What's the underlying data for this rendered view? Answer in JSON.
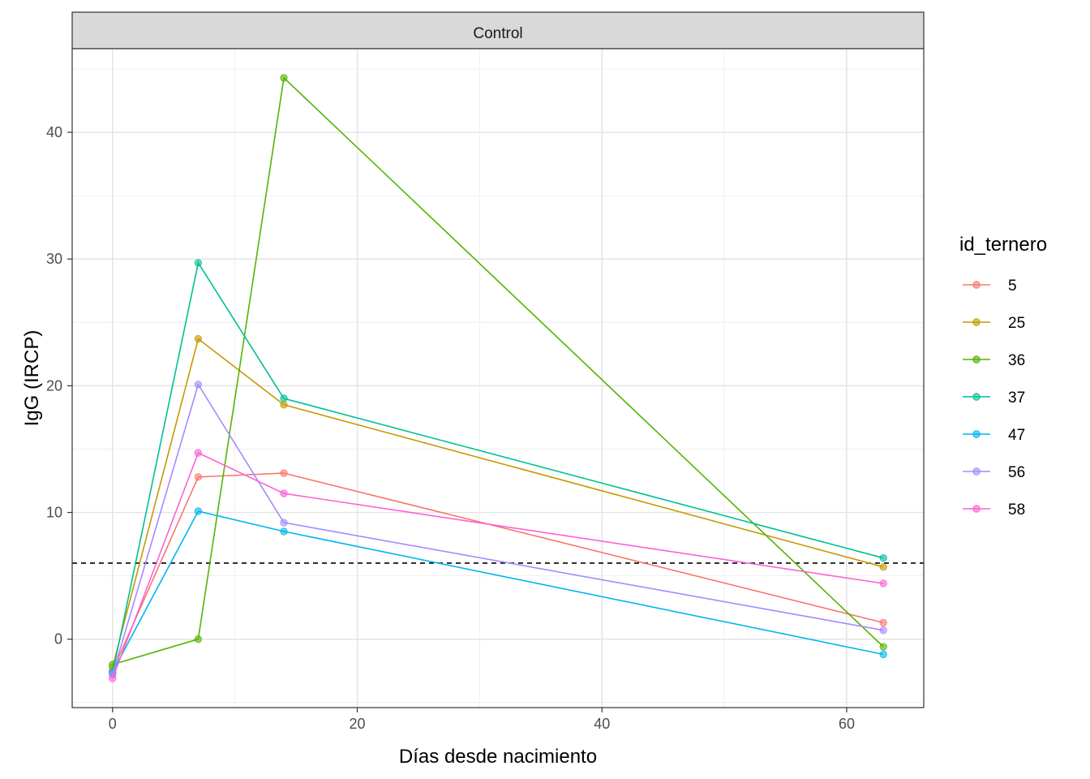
{
  "chart_data": {
    "type": "line",
    "facet": "Control",
    "xlabel": "Días desde nacimiento",
    "ylabel": "IgG (IRCP)",
    "xlim": [
      -3.3,
      66.3
    ],
    "ylim": [
      -5.4,
      46.6
    ],
    "x_ticks": [
      0,
      20,
      40,
      60
    ],
    "y_ticks": [
      0,
      10,
      20,
      30,
      40
    ],
    "grid": true,
    "reference_line": {
      "y": 6,
      "style": "dashed"
    },
    "legend": {
      "title": "id_ternero",
      "position": "right"
    },
    "series": [
      {
        "name": "5",
        "color": "#F8766D",
        "points": [
          [
            0,
            -2.5
          ],
          [
            7,
            12.8
          ],
          [
            14,
            13.1
          ],
          [
            63,
            1.3
          ]
        ]
      },
      {
        "name": "25",
        "color": "#C49A00",
        "points": [
          [
            0,
            -2.2
          ],
          [
            7,
            23.7
          ],
          [
            14,
            18.5
          ],
          [
            63,
            5.7
          ]
        ]
      },
      {
        "name": "36",
        "color": "#53B400",
        "points": [
          [
            0,
            -2.0
          ],
          [
            7,
            0.0
          ],
          [
            14,
            44.3
          ],
          [
            63,
            -0.6
          ]
        ]
      },
      {
        "name": "37",
        "color": "#00C094",
        "points": [
          [
            0,
            -2.7
          ],
          [
            7,
            29.7
          ],
          [
            14,
            19.0
          ],
          [
            63,
            6.4
          ]
        ]
      },
      {
        "name": "47",
        "color": "#00B6EB",
        "points": [
          [
            0,
            -2.6
          ],
          [
            7,
            10.1
          ],
          [
            14,
            8.5
          ],
          [
            63,
            -1.2
          ]
        ]
      },
      {
        "name": "56",
        "color": "#A58AFF",
        "points": [
          [
            0,
            -2.8
          ],
          [
            7,
            20.1
          ],
          [
            14,
            9.2
          ],
          [
            63,
            0.7
          ]
        ]
      },
      {
        "name": "58",
        "color": "#FB61D7",
        "points": [
          [
            0,
            -3.1
          ],
          [
            7,
            14.7
          ],
          [
            14,
            11.5
          ],
          [
            63,
            4.4
          ]
        ]
      }
    ]
  }
}
